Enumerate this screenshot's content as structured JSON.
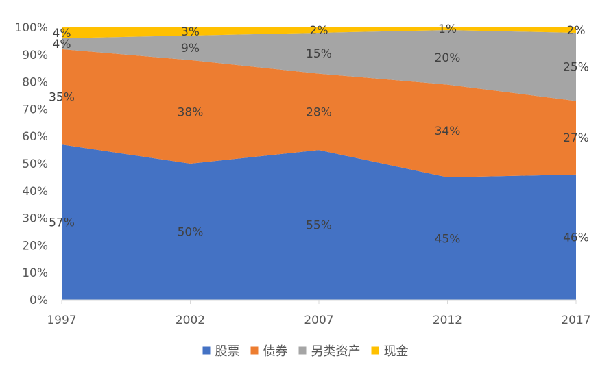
{
  "chart_data": {
    "type": "area",
    "stacked": true,
    "percent": true,
    "categories": [
      "1997",
      "2002",
      "2007",
      "2012",
      "2017"
    ],
    "series": [
      {
        "name": "股票",
        "color": "#4472C4",
        "values": [
          57,
          50,
          55,
          45,
          46
        ],
        "labels": [
          "57%",
          "50%",
          "55%",
          "45%",
          "46%"
        ]
      },
      {
        "name": "债券",
        "color": "#ED7D31",
        "values": [
          35,
          38,
          28,
          34,
          27
        ],
        "labels": [
          "35%",
          "38%",
          "28%",
          "34%",
          "27%"
        ]
      },
      {
        "name": "另类资产",
        "color": "#A5A5A5",
        "values": [
          4,
          9,
          15,
          20,
          25
        ],
        "labels": [
          "4%",
          "9%",
          "15%",
          "20%",
          "25%"
        ]
      },
      {
        "name": "现金",
        "color": "#FFC000",
        "values": [
          4,
          3,
          2,
          1,
          2
        ],
        "labels": [
          "4%",
          "3%",
          "2%",
          "1%",
          "2%"
        ]
      }
    ],
    "y_ticks": [
      "0%",
      "10%",
      "20%",
      "30%",
      "40%",
      "50%",
      "60%",
      "70%",
      "80%",
      "90%",
      "100%"
    ],
    "ylim": [
      0,
      100
    ],
    "grid": false,
    "legend_position": "bottom"
  }
}
